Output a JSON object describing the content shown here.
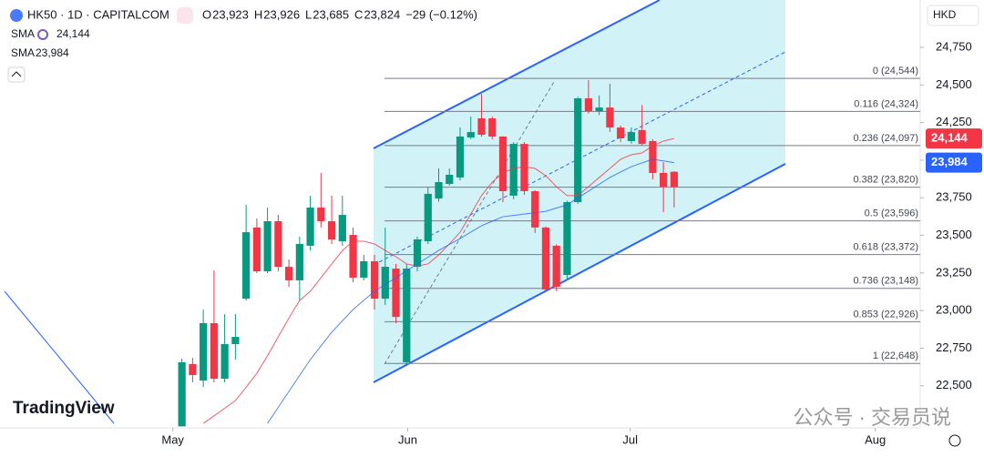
{
  "chart_data": {
    "type": "candlestick",
    "header": {
      "symbol": "HK50 · 1D · CAPITALCOM",
      "ohlc": [
        {
          "key": "O",
          "value": "23,923"
        },
        {
          "key": "H",
          "value": "23,926"
        },
        {
          "key": "L",
          "value": "23,685"
        },
        {
          "key": "C",
          "value": "23,824"
        }
      ],
      "change": "−29 (−0.12%)"
    },
    "currency": "HKD",
    "logo": "TradingView",
    "watermark": "公众号 · 交易员说",
    "up_color": "#089981",
    "down_color": "#f23645",
    "x": [
      0,
      1,
      2,
      3,
      4,
      5,
      6,
      7,
      8,
      9,
      10,
      11,
      12,
      13,
      14,
      15,
      16,
      17,
      18,
      19,
      20,
      21,
      22,
      23,
      24,
      25,
      26,
      27,
      28,
      29,
      30,
      31,
      32,
      33,
      34,
      35,
      36,
      37,
      38,
      39,
      40,
      41,
      42,
      43,
      44,
      45,
      46
    ],
    "open": [
      22230,
      22644,
      22535,
      22916,
      22547,
      22777,
      23079,
      23552,
      23261,
      23594,
      23291,
      23201,
      23431,
      23685,
      23594,
      23461,
      23503,
      23219,
      23328,
      23079,
      23279,
      22656,
      23291,
      23461,
      23745,
      23842,
      23885,
      24151,
      24278,
      24278,
      24157,
      23764,
      24108,
      23794,
      23552,
      23431,
      23237,
      23721,
      24411,
      24326,
      24350,
      24217,
      24127,
      24200,
      24127,
      23915,
      23923
    ],
    "high": [
      22680,
      22686,
      23007,
      23267,
      22977,
      22977,
      23703,
      23612,
      23685,
      23636,
      23340,
      23491,
      23764,
      23915,
      23764,
      23764,
      23552,
      23370,
      23370,
      23552,
      23310,
      23310,
      23491,
      23824,
      23945,
      23945,
      24218,
      24290,
      24441,
      24290,
      24160,
      24120,
      24120,
      23800,
      23560,
      23440,
      23730,
      24420,
      24532,
      24430,
      24508,
      24230,
      24217,
      24367,
      24140,
      23987,
      23926
    ],
    "low": [
      22230,
      22523,
      22492,
      22523,
      22523,
      22674,
      23067,
      23249,
      23249,
      23261,
      23158,
      23067,
      23400,
      23552,
      23443,
      23431,
      23188,
      23201,
      23007,
      23037,
      22916,
      22644,
      23261,
      23443,
      23724,
      23830,
      23866,
      24140,
      24157,
      24140,
      23721,
      23740,
      23770,
      23515,
      23128,
      23130,
      23200,
      23710,
      24310,
      24300,
      24187,
      24120,
      24110,
      24100,
      23872,
      23655,
      23685
    ],
    "close": [
      22656,
      22571,
      22916,
      22547,
      22777,
      22825,
      23521,
      23261,
      23594,
      23291,
      23201,
      23443,
      23685,
      23594,
      23473,
      23636,
      23219,
      23328,
      23079,
      23291,
      22958,
      23279,
      23473,
      23776,
      23854,
      23903,
      24157,
      24187,
      24169,
      24157,
      23794,
      24108,
      23794,
      23552,
      23140,
      23158,
      23721,
      24411,
      24326,
      24350,
      24217,
      24145,
      24187,
      24108,
      23915,
      23824,
      23824
    ],
    "series": [
      {
        "name": "SMA",
        "color": "#f23645",
        "value_label": "24,144",
        "values": [
          null,
          null,
          22250,
          22300,
          22350,
          22402,
          22490,
          22583,
          22700,
          22825,
          22950,
          23067,
          23128,
          23219,
          23310,
          23400,
          23461,
          23461,
          23443,
          23400,
          23358,
          23310,
          23297,
          23310,
          23370,
          23443,
          23521,
          23642,
          23764,
          23854,
          23915,
          23945,
          23957,
          23945,
          23897,
          23824,
          23764,
          23764,
          23824,
          23885,
          23945,
          24006,
          24036,
          24048,
          24096,
          24127,
          24144
        ]
      },
      {
        "name": "SMA",
        "color": "#2962ff",
        "value_label": "23,984",
        "values": [
          null,
          null,
          null,
          null,
          null,
          null,
          null,
          null,
          22250,
          22356,
          22462,
          22568,
          22674,
          22765,
          22856,
          22932,
          23007,
          23068,
          23128,
          23174,
          23219,
          23265,
          23310,
          23355,
          23400,
          23440,
          23479,
          23522,
          23564,
          23594,
          23624,
          23633,
          23642,
          23651,
          23660,
          23682,
          23703,
          23749,
          23794,
          23840,
          23885,
          23921,
          23957,
          23982,
          24006,
          23995,
          23984
        ]
      }
    ],
    "fib_levels": [
      {
        "value": 24544,
        "label": "0 (24,544)"
      },
      {
        "value": 24324,
        "label": "0.116 (24,324)"
      },
      {
        "value": 24097,
        "label": "0.236 (24,097)"
      },
      {
        "value": 23820,
        "label": "0.382 (23,820)"
      },
      {
        "value": 23596,
        "label": "0.5 (23,596)"
      },
      {
        "value": 23372,
        "label": "0.618 (23,372)"
      },
      {
        "value": 23148,
        "label": "0.736 (23,148)"
      },
      {
        "value": 22926,
        "label": "0.853 (22,926)"
      },
      {
        "value": 22648,
        "label": "1 (22,648)"
      }
    ],
    "xlim": [
      -17,
      69
    ],
    "xticks": [
      {
        "value": -0.85,
        "label": "May"
      },
      {
        "value": 21.1,
        "label": "Jun"
      },
      {
        "value": 41.9,
        "label": "Jul"
      },
      {
        "value": 64.8,
        "label": "Aug"
      }
    ],
    "ylim": [
      22220,
      25065
    ],
    "yticks": [
      {
        "value": 22500,
        "label": "22,500"
      },
      {
        "value": 22750,
        "label": "22,750"
      },
      {
        "value": 23000,
        "label": "23,000"
      },
      {
        "value": 23250,
        "label": "23,250"
      },
      {
        "value": 23500,
        "label": "23,500"
      },
      {
        "value": 23750,
        "label": "23,750"
      },
      {
        "value": 24000,
        "label": "24,000"
      },
      {
        "value": 24250,
        "label": "24,250"
      },
      {
        "value": 24500,
        "label": "24,500"
      },
      {
        "value": 24750,
        "label": "24,750"
      }
    ]
  }
}
